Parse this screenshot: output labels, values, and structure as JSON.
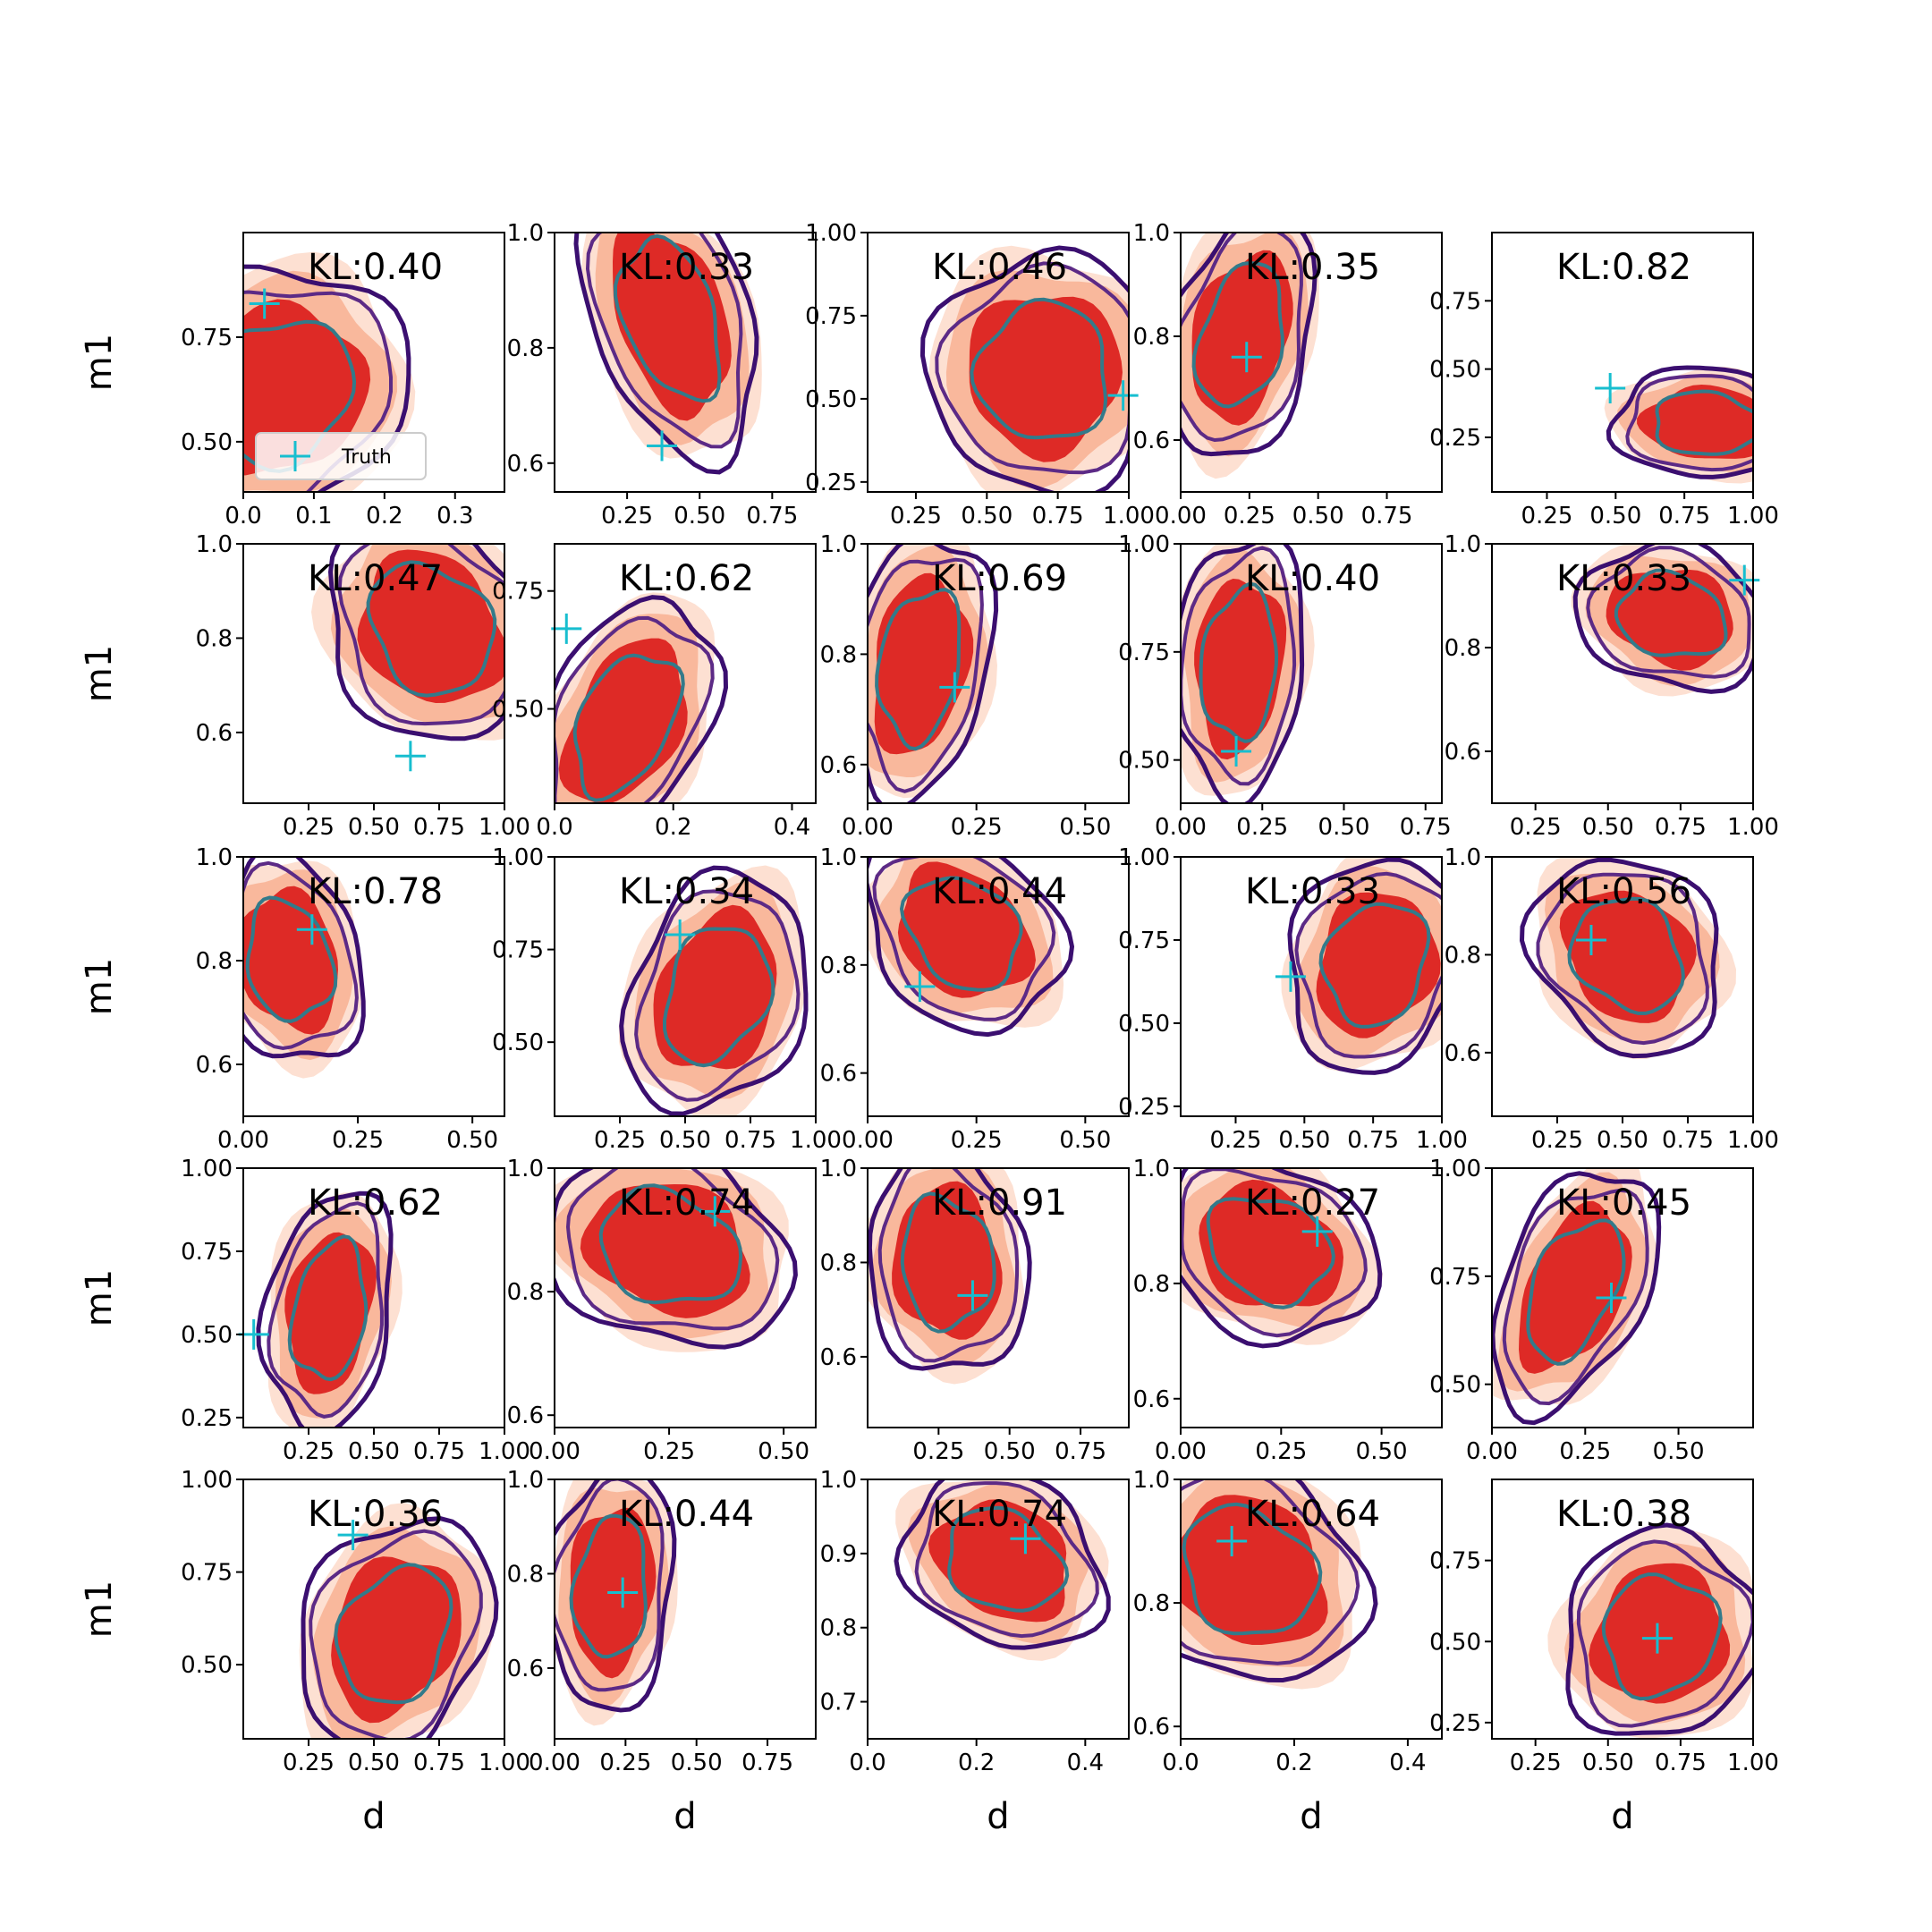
{
  "figure": {
    "xlabel": "d",
    "ylabel": "m1",
    "legend_label": "Truth"
  },
  "colors": {
    "fill_outer": "#fde0d2",
    "fill_mid": "#f9b89c",
    "fill_inner": "#de2a26",
    "contour_outer": "#3b0f70",
    "contour_mid": "#5c2a86",
    "contour_inner": "#337a8a",
    "truth_marker": "#17becf"
  },
  "chart_data": [
    {
      "type": "contour",
      "kl": "KL:0.40",
      "xlim": [
        0,
        0.37
      ],
      "ylim": [
        0.38,
        1.0
      ],
      "xticks": [
        0.0,
        0.1,
        0.2,
        0.3
      ],
      "xtick_labels": [
        "0.0",
        "0.1",
        "0.2",
        "0.3"
      ],
      "yticks": [
        0.5,
        0.75
      ],
      "ytick_labels": [
        "0.50",
        "0.75"
      ],
      "truth": [
        0.03,
        0.83
      ],
      "center": [
        0.05,
        0.62
      ],
      "spread": [
        0.09,
        0.15
      ],
      "tilt": -0.2,
      "xlabel": "",
      "ylabel": "m1",
      "legend": true
    },
    {
      "type": "contour",
      "kl": "KL:0.33",
      "xlim": [
        0,
        0.9
      ],
      "ylim": [
        0.55,
        1.0
      ],
      "xticks": [
        0.25,
        0.5,
        0.75
      ],
      "xtick_labels": [
        "0.25",
        "0.50",
        "0.75"
      ],
      "yticks": [
        0.6,
        0.8,
        1.0
      ],
      "ytick_labels": [
        "0.6",
        "0.8",
        "1.0"
      ],
      "truth": [
        0.37,
        0.63
      ],
      "center": [
        0.4,
        0.85
      ],
      "spread": [
        0.14,
        0.12
      ],
      "tilt": 0.4,
      "xlabel": "",
      "ylabel": "",
      "legend": false
    },
    {
      "type": "contour",
      "kl": "KL:0.46",
      "xlim": [
        0.08,
        1.0
      ],
      "ylim": [
        0.22,
        1.0
      ],
      "xticks": [
        0.25,
        0.5,
        0.75,
        1.0
      ],
      "xtick_labels": [
        "0.25",
        "0.50",
        "0.75",
        "1.00"
      ],
      "yticks": [
        0.25,
        0.5,
        0.75,
        1.0
      ],
      "ytick_labels": [
        "0.25",
        "0.50",
        "0.75",
        "1.00"
      ],
      "truth": [
        0.98,
        0.51
      ],
      "center": [
        0.7,
        0.58
      ],
      "spread": [
        0.2,
        0.18
      ],
      "tilt": 0.0,
      "xlabel": "",
      "ylabel": "",
      "legend": false
    },
    {
      "type": "contour",
      "kl": "KL:0.35",
      "xlim": [
        0,
        0.95
      ],
      "ylim": [
        0.5,
        1.0
      ],
      "xticks": [
        0.0,
        0.25,
        0.5,
        0.75
      ],
      "xtick_labels": [
        "0.00",
        "0.25",
        "0.50",
        "0.75"
      ],
      "yticks": [
        0.6,
        0.8,
        1.0
      ],
      "ytick_labels": [
        "0.6",
        "0.8",
        "1.0"
      ],
      "truth": [
        0.24,
        0.76
      ],
      "center": [
        0.22,
        0.8
      ],
      "spread": [
        0.13,
        0.12
      ],
      "tilt": -0.3,
      "xlabel": "",
      "ylabel": "",
      "legend": false
    },
    {
      "type": "contour",
      "kl": "KL:0.82",
      "xlim": [
        0.05,
        1.0
      ],
      "ylim": [
        0.05,
        1.0
      ],
      "xticks": [
        0.25,
        0.5,
        0.75,
        1.0
      ],
      "xtick_labels": [
        "0.25",
        "0.50",
        "0.75",
        "1.00"
      ],
      "yticks": [
        0.25,
        0.5,
        0.75
      ],
      "ytick_labels": [
        "0.25",
        "0.50",
        "0.75"
      ],
      "truth": [
        0.48,
        0.43
      ],
      "center": [
        0.83,
        0.3
      ],
      "spread": [
        0.17,
        0.1
      ],
      "tilt": 0.2,
      "xlabel": "",
      "ylabel": "",
      "legend": false
    },
    {
      "type": "contour",
      "kl": "KL:0.47",
      "xlim": [
        0,
        1.0
      ],
      "ylim": [
        0.45,
        1.0
      ],
      "xticks": [
        0.25,
        0.5,
        0.75,
        1.0
      ],
      "xtick_labels": [
        "0.25",
        "0.50",
        "0.75",
        "1.00"
      ],
      "yticks": [
        0.6,
        0.8,
        1.0
      ],
      "ytick_labels": [
        "0.6",
        "0.8",
        "1.0"
      ],
      "truth": [
        0.64,
        0.55
      ],
      "center": [
        0.72,
        0.82
      ],
      "spread": [
        0.2,
        0.12
      ],
      "tilt": 0.3,
      "xlabel": "",
      "ylabel": "m1",
      "legend": false
    },
    {
      "type": "contour",
      "kl": "KL:0.62",
      "xlim": [
        0,
        0.44
      ],
      "ylim": [
        0.3,
        0.85
      ],
      "xticks": [
        0.0,
        0.2,
        0.4
      ],
      "xtick_labels": [
        "0.0",
        "0.2",
        "0.4"
      ],
      "yticks": [
        0.5,
        0.75
      ],
      "ytick_labels": [
        "0.50",
        "0.75"
      ],
      "truth": [
        0.02,
        0.67
      ],
      "center": [
        0.12,
        0.47
      ],
      "spread": [
        0.07,
        0.13
      ],
      "tilt": -0.5,
      "xlabel": "",
      "ylabel": "",
      "legend": false
    },
    {
      "type": "contour",
      "kl": "KL:0.69",
      "xlim": [
        0,
        0.6
      ],
      "ylim": [
        0.53,
        1.0
      ],
      "xticks": [
        0.0,
        0.25,
        0.5
      ],
      "xtick_labels": [
        "0.00",
        "0.25",
        "0.50"
      ],
      "yticks": [
        0.6,
        0.8,
        1.0
      ],
      "ytick_labels": [
        "0.6",
        "0.8",
        "1.0"
      ],
      "truth": [
        0.2,
        0.74
      ],
      "center": [
        0.12,
        0.78
      ],
      "spread": [
        0.08,
        0.12
      ],
      "tilt": -0.2,
      "xlabel": "",
      "ylabel": "",
      "legend": false
    },
    {
      "type": "contour",
      "kl": "KL:0.40",
      "xlim": [
        0,
        0.8
      ],
      "ylim": [
        0.4,
        1.0
      ],
      "xticks": [
        0.0,
        0.25,
        0.5,
        0.75
      ],
      "xtick_labels": [
        "0.00",
        "0.25",
        "0.50",
        "0.75"
      ],
      "yticks": [
        0.5,
        0.75,
        1.0
      ],
      "ytick_labels": [
        "0.50",
        "0.75",
        "1.00"
      ],
      "truth": [
        0.17,
        0.52
      ],
      "center": [
        0.18,
        0.72
      ],
      "spread": [
        0.1,
        0.15
      ],
      "tilt": -0.1,
      "xlabel": "",
      "ylabel": "",
      "legend": false
    },
    {
      "type": "contour",
      "kl": "KL:0.33",
      "xlim": [
        0.1,
        1.0
      ],
      "ylim": [
        0.5,
        1.0
      ],
      "xticks": [
        0.25,
        0.5,
        0.75,
        1.0
      ],
      "xtick_labels": [
        "0.25",
        "0.50",
        "0.75",
        "1.00"
      ],
      "yticks": [
        0.6,
        0.8,
        1.0
      ],
      "ytick_labels": [
        "0.6",
        "0.8",
        "1.0"
      ],
      "truth": [
        0.97,
        0.93
      ],
      "center": [
        0.72,
        0.86
      ],
      "spread": [
        0.16,
        0.07
      ],
      "tilt": 0.3,
      "xlabel": "",
      "ylabel": "",
      "legend": false
    },
    {
      "type": "contour",
      "kl": "KL:0.78",
      "xlim": [
        0,
        0.57
      ],
      "ylim": [
        0.5,
        1.0
      ],
      "xticks": [
        0.0,
        0.25,
        0.5
      ],
      "xtick_labels": [
        "0.00",
        "0.25",
        "0.50"
      ],
      "yticks": [
        0.6,
        0.8,
        1.0
      ],
      "ytick_labels": [
        "0.6",
        "0.8",
        "1.0"
      ],
      "truth": [
        0.15,
        0.86
      ],
      "center": [
        0.1,
        0.8
      ],
      "spread": [
        0.08,
        0.1
      ],
      "tilt": 0.2,
      "xlabel": "",
      "ylabel": "m1",
      "legend": false
    },
    {
      "type": "contour",
      "kl": "KL:0.34",
      "xlim": [
        0,
        1.0
      ],
      "ylim": [
        0.3,
        1.0
      ],
      "xticks": [
        0.25,
        0.5,
        0.75,
        1.0
      ],
      "xtick_labels": [
        "0.25",
        "0.50",
        "0.75",
        "1.00"
      ],
      "yticks": [
        0.5,
        0.75,
        1.0
      ],
      "ytick_labels": [
        "0.50",
        "0.75",
        "1.00"
      ],
      "truth": [
        0.48,
        0.79
      ],
      "center": [
        0.62,
        0.63
      ],
      "spread": [
        0.17,
        0.16
      ],
      "tilt": -0.3,
      "xlabel": "",
      "ylabel": "",
      "legend": false
    },
    {
      "type": "contour",
      "kl": "KL:0.44",
      "xlim": [
        0,
        0.6
      ],
      "ylim": [
        0.52,
        1.0
      ],
      "xticks": [
        0.0,
        0.25,
        0.5
      ],
      "xtick_labels": [
        "0.00",
        "0.25",
        "0.50"
      ],
      "yticks": [
        0.6,
        0.8,
        1.0
      ],
      "ytick_labels": [
        "0.6",
        "0.8",
        "1.0"
      ],
      "truth": [
        0.12,
        0.76
      ],
      "center": [
        0.22,
        0.86
      ],
      "spread": [
        0.11,
        0.09
      ],
      "tilt": 0.4,
      "xlabel": "",
      "ylabel": "",
      "legend": false
    },
    {
      "type": "contour",
      "kl": "KL:0.33",
      "xlim": [
        0.05,
        1.0
      ],
      "ylim": [
        0.22,
        1.0
      ],
      "xticks": [
        0.25,
        0.5,
        0.75,
        1.0
      ],
      "xtick_labels": [
        "0.25",
        "0.50",
        "0.75",
        "1.00"
      ],
      "yticks": [
        0.25,
        0.5,
        0.75,
        1.0
      ],
      "ytick_labels": [
        "0.25",
        "0.50",
        "0.75",
        "1.00"
      ],
      "truth": [
        0.45,
        0.64
      ],
      "center": [
        0.76,
        0.68
      ],
      "spread": [
        0.16,
        0.16
      ],
      "tilt": -0.2,
      "xlabel": "",
      "ylabel": "",
      "legend": false
    },
    {
      "type": "contour",
      "kl": "KL:0.56",
      "xlim": [
        0,
        1.0
      ],
      "ylim": [
        0.47,
        1.0
      ],
      "xticks": [
        0.25,
        0.5,
        0.75,
        1.0
      ],
      "xtick_labels": [
        "0.25",
        "0.50",
        "0.75",
        "1.00"
      ],
      "yticks": [
        0.6,
        0.8,
        1.0
      ],
      "ytick_labels": [
        "0.6",
        "0.8",
        "1.0"
      ],
      "truth": [
        0.38,
        0.83
      ],
      "center": [
        0.52,
        0.8
      ],
      "spread": [
        0.18,
        0.1
      ],
      "tilt": 0.3,
      "xlabel": "",
      "ylabel": "",
      "legend": false
    },
    {
      "type": "contour",
      "kl": "KL:0.62",
      "xlim": [
        0,
        1.0
      ],
      "ylim": [
        0.22,
        1.0
      ],
      "xticks": [
        0.25,
        0.5,
        0.75,
        1.0
      ],
      "xtick_labels": [
        "0.25",
        "0.50",
        "0.75",
        "1.00"
      ],
      "yticks": [
        0.25,
        0.5,
        0.75,
        1.0
      ],
      "ytick_labels": [
        "0.25",
        "0.50",
        "0.75",
        "1.00"
      ],
      "truth": [
        0.04,
        0.5
      ],
      "center": [
        0.33,
        0.57
      ],
      "spread": [
        0.12,
        0.18
      ],
      "tilt": -0.2,
      "xlabel": "",
      "ylabel": "m1",
      "legend": false
    },
    {
      "type": "contour",
      "kl": "KL:0.74",
      "xlim": [
        0,
        0.57
      ],
      "ylim": [
        0.58,
        1.0
      ],
      "xticks": [
        0.0,
        0.25,
        0.5
      ],
      "xtick_labels": [
        "0.00",
        "0.25",
        "0.50"
      ],
      "yticks": [
        0.6,
        0.8,
        1.0
      ],
      "ytick_labels": [
        "0.6",
        "0.8",
        "1.0"
      ],
      "truth": [
        0.35,
        0.93
      ],
      "center": [
        0.25,
        0.87
      ],
      "spread": [
        0.13,
        0.08
      ],
      "tilt": 0.4,
      "xlabel": "",
      "ylabel": "",
      "legend": false
    },
    {
      "type": "contour",
      "kl": "KL:0.91",
      "xlim": [
        0,
        0.92
      ],
      "ylim": [
        0.45,
        1.0
      ],
      "xticks": [
        0.25,
        0.5,
        0.75
      ],
      "xtick_labels": [
        "0.25",
        "0.50",
        "0.75"
      ],
      "yticks": [
        0.6,
        0.8,
        1.0
      ],
      "ytick_labels": [
        "0.6",
        "0.8",
        "1.0"
      ],
      "truth": [
        0.37,
        0.73
      ],
      "center": [
        0.28,
        0.8
      ],
      "spread": [
        0.14,
        0.12
      ],
      "tilt": 0.1,
      "xlabel": "",
      "ylabel": "",
      "legend": false
    },
    {
      "type": "contour",
      "kl": "KL:0.27",
      "xlim": [
        0,
        0.65
      ],
      "ylim": [
        0.55,
        1.0
      ],
      "xticks": [
        0.0,
        0.25,
        0.5
      ],
      "xtick_labels": [
        "0.00",
        "0.25",
        "0.50"
      ],
      "yticks": [
        0.6,
        0.8,
        1.0
      ],
      "ytick_labels": [
        "0.6",
        "0.8",
        "1.0"
      ],
      "truth": [
        0.34,
        0.89
      ],
      "center": [
        0.22,
        0.86
      ],
      "spread": [
        0.13,
        0.08
      ],
      "tilt": 0.4,
      "xlabel": "",
      "ylabel": "",
      "legend": false
    },
    {
      "type": "contour",
      "kl": "KL:0.45",
      "xlim": [
        0,
        0.7
      ],
      "ylim": [
        0.4,
        1.0
      ],
      "xticks": [
        0.0,
        0.25,
        0.5
      ],
      "xtick_labels": [
        "0.00",
        "0.25",
        "0.50"
      ],
      "yticks": [
        0.5,
        0.75,
        1.0
      ],
      "ytick_labels": [
        "0.50",
        "0.75",
        "1.00"
      ],
      "truth": [
        0.32,
        0.7
      ],
      "center": [
        0.22,
        0.72
      ],
      "spread": [
        0.1,
        0.14
      ],
      "tilt": -0.5,
      "xlabel": "",
      "ylabel": "",
      "legend": false
    },
    {
      "type": "contour",
      "kl": "KL:0.36",
      "xlim": [
        0,
        1.0
      ],
      "ylim": [
        0.3,
        1.0
      ],
      "xticks": [
        0.25,
        0.5,
        0.75,
        1.0
      ],
      "xtick_labels": [
        "0.25",
        "0.50",
        "0.75",
        "1.00"
      ],
      "yticks": [
        0.5,
        0.75,
        1.0
      ],
      "ytick_labels": [
        "0.50",
        "0.75",
        "1.00"
      ],
      "truth": [
        0.42,
        0.85
      ],
      "center": [
        0.58,
        0.58
      ],
      "spread": [
        0.18,
        0.16
      ],
      "tilt": -0.3,
      "xlabel": "d",
      "ylabel": "m1",
      "legend": false
    },
    {
      "type": "contour",
      "kl": "KL:0.44",
      "xlim": [
        0,
        0.92
      ],
      "ylim": [
        0.45,
        1.0
      ],
      "xticks": [
        0.0,
        0.25,
        0.5,
        0.75
      ],
      "xtick_labels": [
        "0.00",
        "0.25",
        "0.50",
        "0.75"
      ],
      "yticks": [
        0.6,
        0.8,
        1.0
      ],
      "ytick_labels": [
        "0.6",
        "0.8",
        "1.0"
      ],
      "truth": [
        0.24,
        0.76
      ],
      "center": [
        0.2,
        0.77
      ],
      "spread": [
        0.11,
        0.13
      ],
      "tilt": -0.1,
      "xlabel": "d",
      "ylabel": "",
      "legend": false
    },
    {
      "type": "contour",
      "kl": "KL:0.74",
      "xlim": [
        0,
        0.48
      ],
      "ylim": [
        0.65,
        1.0
      ],
      "xticks": [
        0.0,
        0.2,
        0.4
      ],
      "xtick_labels": [
        "0.0",
        "0.2",
        "0.4"
      ],
      "yticks": [
        0.7,
        0.8,
        0.9,
        1.0
      ],
      "ytick_labels": [
        "0.7",
        "0.8",
        "0.9",
        "1.0"
      ],
      "truth": [
        0.29,
        0.92
      ],
      "center": [
        0.25,
        0.89
      ],
      "spread": [
        0.09,
        0.06
      ],
      "tilt": 0.4,
      "xlabel": "d",
      "ylabel": "",
      "legend": false
    },
    {
      "type": "contour",
      "kl": "KL:0.64",
      "xlim": [
        0,
        0.46
      ],
      "ylim": [
        0.58,
        1.0
      ],
      "xticks": [
        0.0,
        0.2,
        0.4
      ],
      "xtick_labels": [
        "0.0",
        "0.2",
        "0.4"
      ],
      "yticks": [
        0.6,
        0.8,
        1.0
      ],
      "ytick_labels": [
        "0.6",
        "0.8",
        "1.0"
      ],
      "truth": [
        0.09,
        0.9
      ],
      "center": [
        0.12,
        0.85
      ],
      "spread": [
        0.1,
        0.09
      ],
      "tilt": 0.3,
      "xlabel": "d",
      "ylabel": "",
      "legend": false
    },
    {
      "type": "contour",
      "kl": "KL:0.38",
      "xlim": [
        0.1,
        1.0
      ],
      "ylim": [
        0.2,
        1.0
      ],
      "xticks": [
        0.25,
        0.5,
        0.75,
        1.0
      ],
      "xtick_labels": [
        "0.25",
        "0.50",
        "0.75",
        "1.00"
      ],
      "yticks": [
        0.25,
        0.5,
        0.75
      ],
      "ytick_labels": [
        "0.25",
        "0.50",
        "0.75"
      ],
      "truth": [
        0.67,
        0.51
      ],
      "center": [
        0.68,
        0.52
      ],
      "spread": [
        0.17,
        0.16
      ],
      "tilt": -0.1,
      "xlabel": "d",
      "ylabel": "",
      "legend": false
    }
  ]
}
